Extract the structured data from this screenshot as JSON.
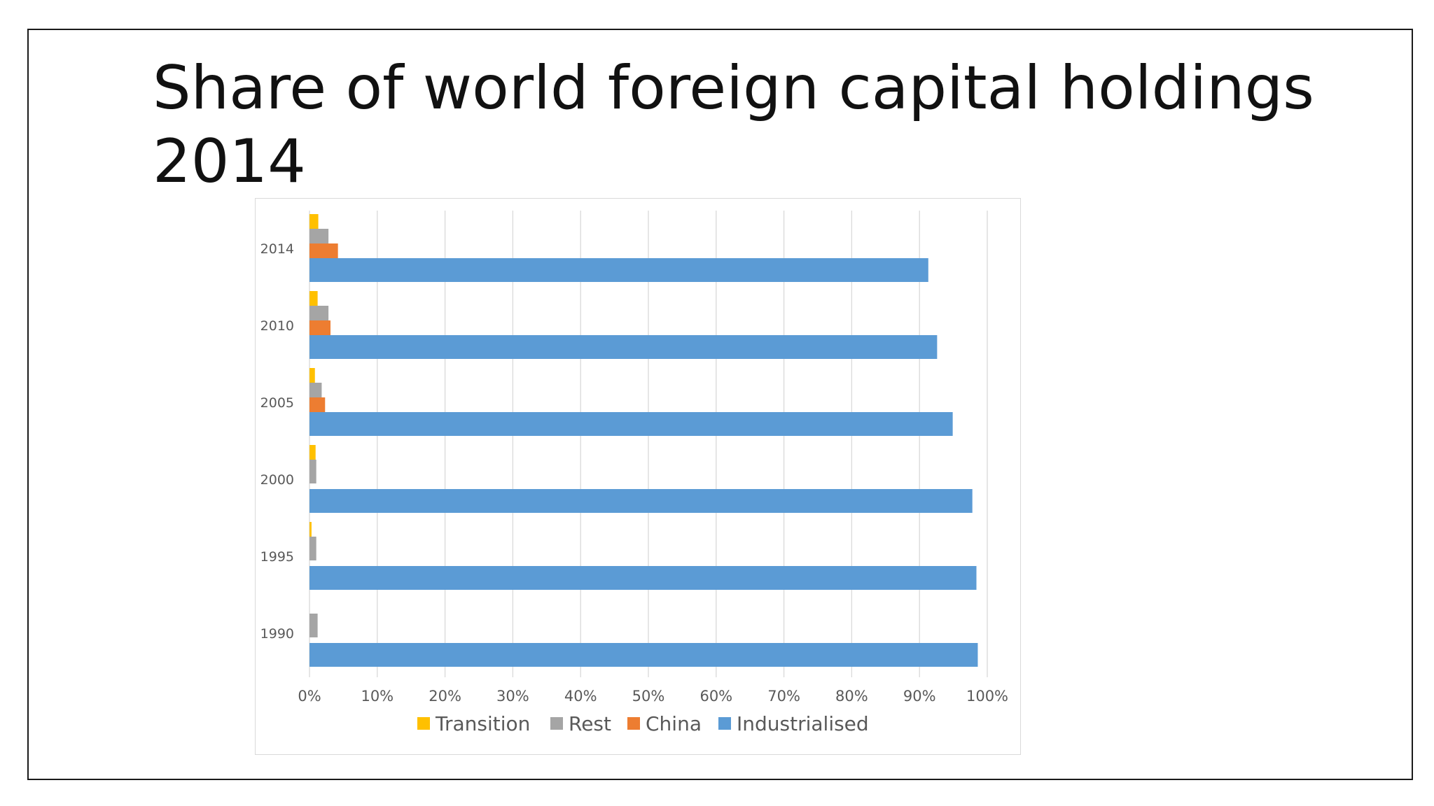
{
  "slide": {
    "title": "Share of world foreign capital holdings 2014"
  },
  "chart_data": {
    "type": "bar",
    "orientation": "horizontal",
    "categories": [
      "1990",
      "1995",
      "2000",
      "2005",
      "2010",
      "2014"
    ],
    "series": [
      {
        "name": "Transition",
        "color": "#FFC000",
        "values": [
          0,
          0.3,
          0.9,
          0.8,
          1.2,
          1.3
        ]
      },
      {
        "name": "Rest",
        "color": "#A5A5A5",
        "values": [
          1.2,
          1.0,
          1.0,
          1.8,
          2.8,
          2.8
        ]
      },
      {
        "name": "China",
        "color": "#ED7D31",
        "values": [
          0,
          0,
          0,
          2.3,
          3.1,
          4.2
        ]
      },
      {
        "name": "Industrialised",
        "color": "#5B9BD5",
        "values": [
          98.6,
          98.4,
          97.8,
          94.9,
          92.6,
          91.3
        ]
      }
    ],
    "xlim": [
      0,
      100
    ],
    "xticks": [
      "0%",
      "10%",
      "20%",
      "30%",
      "40%",
      "50%",
      "60%",
      "70%",
      "80%",
      "90%",
      "100%"
    ],
    "grid": true,
    "legend_position": "bottom"
  }
}
